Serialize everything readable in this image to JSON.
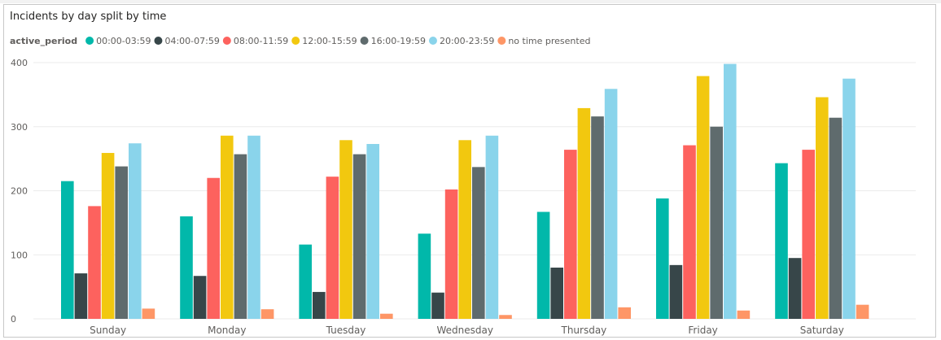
{
  "chart_data": {
    "type": "bar",
    "title": "Incidents by day split by time",
    "legend_title": "active_period",
    "legend_position": "top-left",
    "categories": [
      "Sunday",
      "Monday",
      "Tuesday",
      "Wednesday",
      "Thursday",
      "Friday",
      "Saturday"
    ],
    "ylim": [
      0,
      400
    ],
    "yticks": [
      0,
      100,
      200,
      300,
      400
    ],
    "grid": true,
    "series": [
      {
        "name": "00:00-03:59",
        "color": "#01b8aa",
        "values": [
          215,
          160,
          116,
          133,
          167,
          188,
          243
        ]
      },
      {
        "name": "04:00-07:59",
        "color": "#374649",
        "values": [
          71,
          67,
          42,
          41,
          80,
          84,
          95
        ]
      },
      {
        "name": "08:00-11:59",
        "color": "#fd625e",
        "values": [
          176,
          220,
          222,
          202,
          264,
          271,
          264
        ]
      },
      {
        "name": "12:00-15:59",
        "color": "#f2c80f",
        "values": [
          259,
          286,
          279,
          279,
          329,
          379,
          346
        ]
      },
      {
        "name": "16:00-19:59",
        "color": "#5f6b6d",
        "values": [
          238,
          257,
          257,
          237,
          316,
          300,
          314
        ]
      },
      {
        "name": "20:00-23:59",
        "color": "#8ad4eb",
        "values": [
          274,
          286,
          273,
          286,
          359,
          398,
          375
        ]
      },
      {
        "name": "no time presented",
        "color": "#fe9666",
        "values": [
          16,
          15,
          8,
          6,
          18,
          13,
          22
        ]
      }
    ]
  }
}
